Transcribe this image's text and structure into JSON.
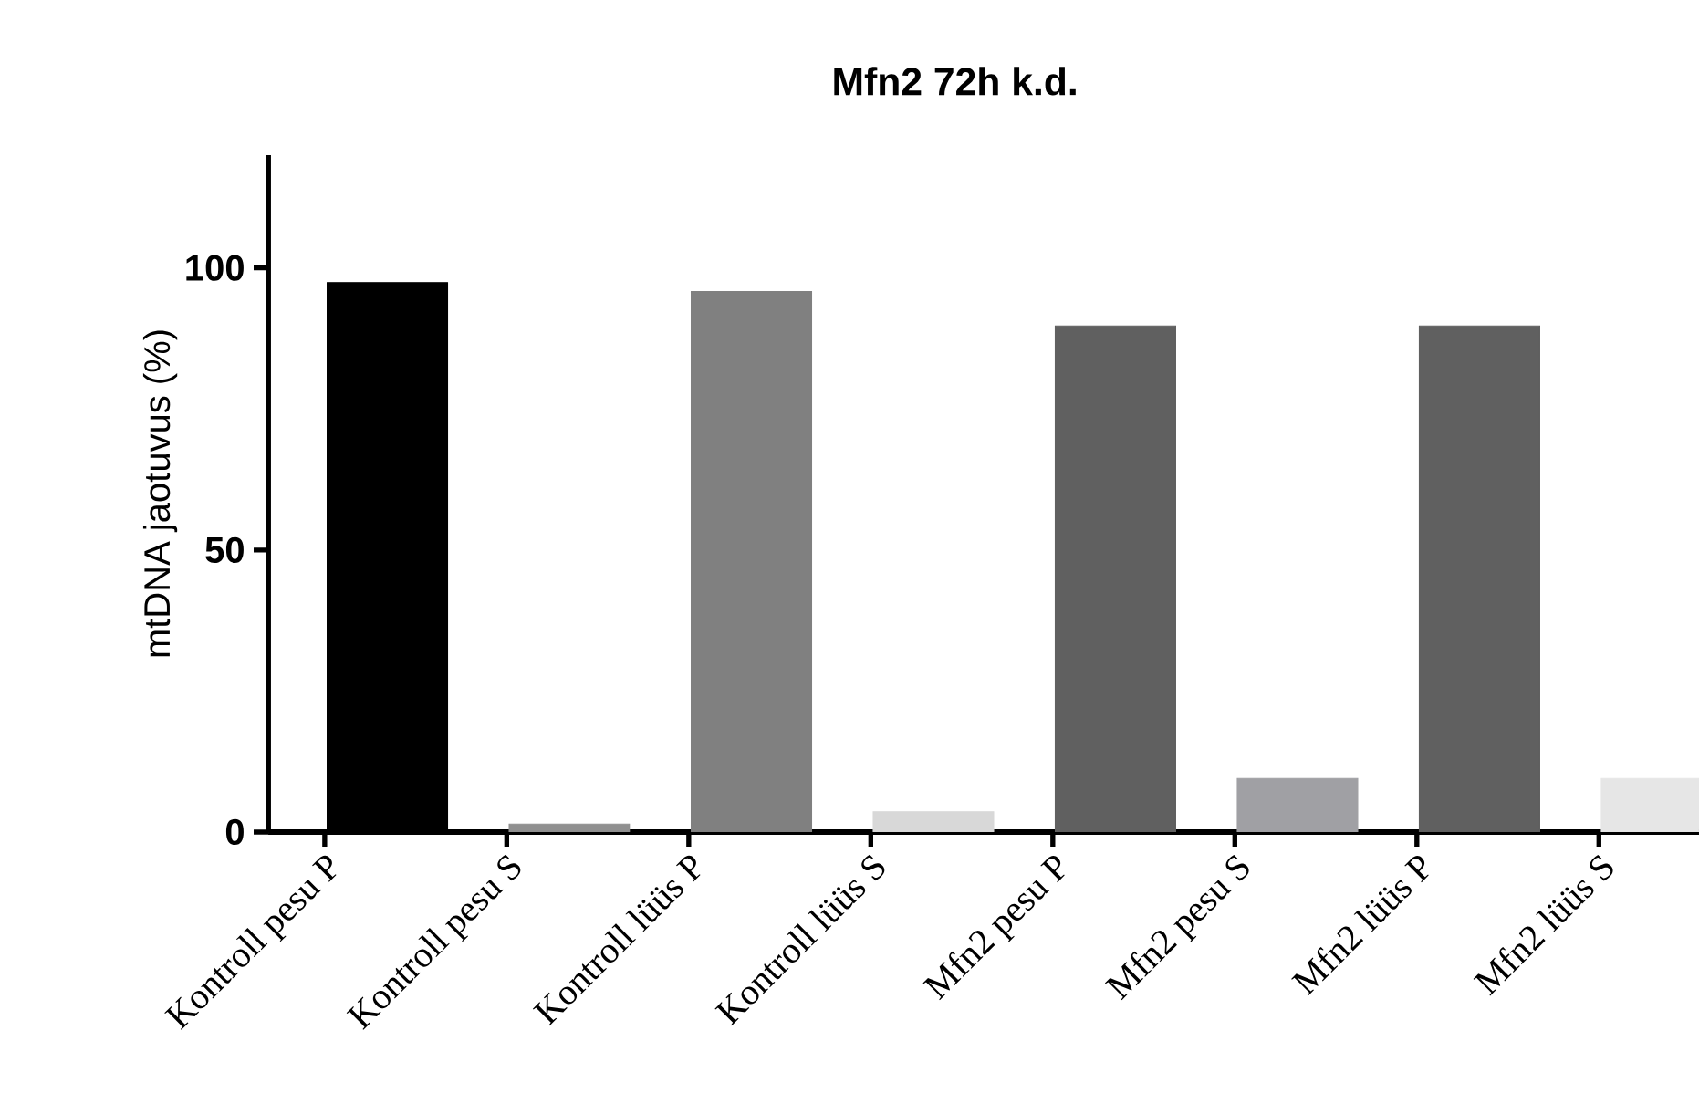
{
  "chart_data": {
    "type": "bar",
    "title": "Mfn2 72h k.d.",
    "ylabel": "mtDNA jaotuvus (%)",
    "categories": [
      "Kontroll pesu P",
      "Kontroll pesu S",
      "Kontroll lüüs P",
      "Kontroll lüüs S",
      "Mfn2 pesu P",
      "Mfn2 pesu S",
      "Mfn2 lüüs P",
      "Mfn2 lüüs S"
    ],
    "values": [
      97.4,
      1.4,
      95.8,
      3.6,
      89.7,
      9.5,
      89.7,
      9.5
    ],
    "colors": [
      "#000000",
      "#909090",
      "#808080",
      "#d8d8d8",
      "#606060",
      "#a0a0a4",
      "#606060",
      "#e6e6e6"
    ],
    "ylim": [
      0,
      120
    ],
    "yticks": [
      0,
      50,
      100
    ]
  }
}
